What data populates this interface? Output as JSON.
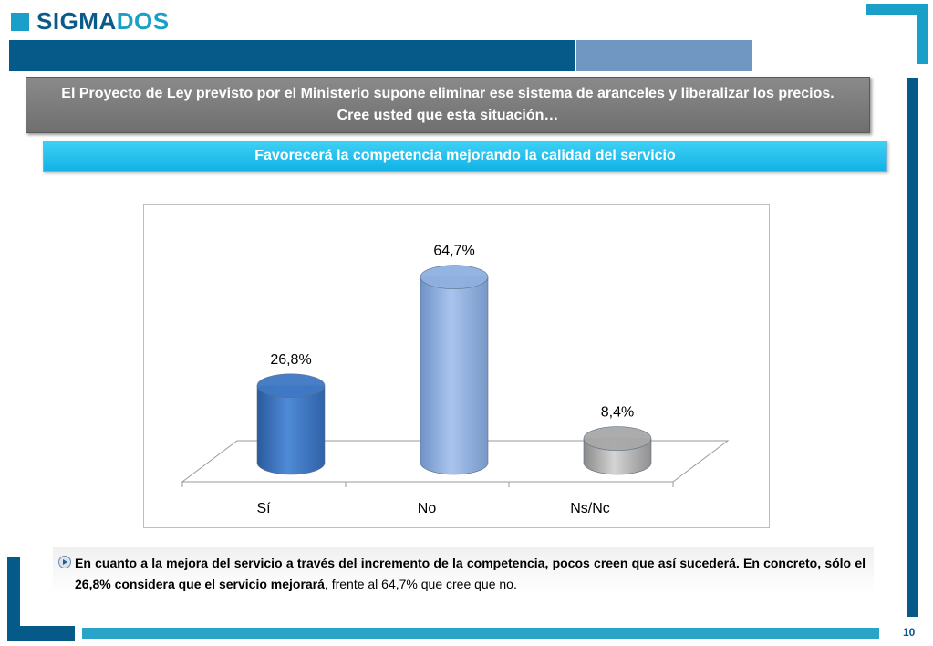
{
  "logo": {
    "part1": "SIGMA",
    "part2": "DOS"
  },
  "question": "El Proyecto de Ley previsto por el Ministerio supone eliminar ese sistema de aranceles y liberalizar los precios. Cree usted que esta situación…",
  "option": "Favorecerá la competencia mejorando la calidad del servicio",
  "chart_data": {
    "type": "bar",
    "categories": [
      "Sí",
      "No",
      "Ns/Nc"
    ],
    "values": [
      26.8,
      64.7,
      8.4
    ],
    "data_labels": [
      "26,8%",
      "64,7%",
      "8,4%"
    ],
    "colors": [
      "#3f78c4",
      "#8fb0e0",
      "#a8a8a8"
    ],
    "title": "",
    "xlabel": "",
    "ylabel": "",
    "ylim": [
      0,
      70
    ]
  },
  "conclusion": {
    "bold": "En cuanto a la mejora del servicio a través del incremento de la competencia, pocos creen que así sucederá. En concreto, sólo el 26,8% considera que el servicio mejorará",
    "normal": ", frente al 64,7% que cree que no."
  },
  "page_number": "10"
}
